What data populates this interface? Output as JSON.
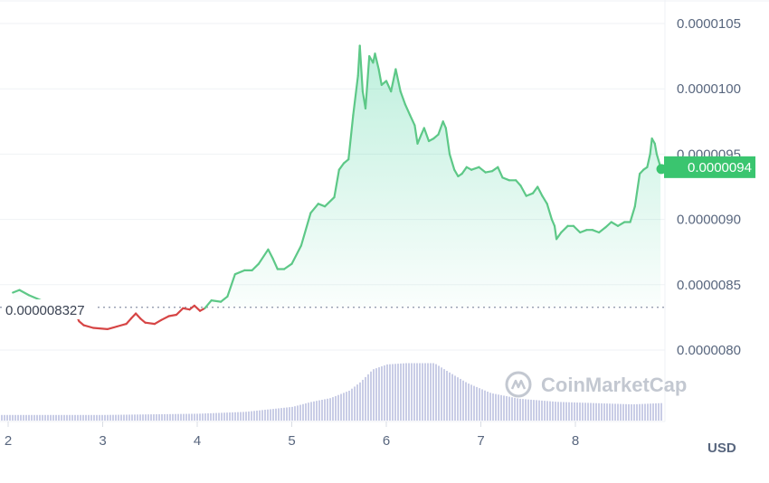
{
  "chart_data": {
    "type": "area",
    "currency_label": "USD",
    "watermark": "CoinMarketCap",
    "y_ticks": [
      "0.0000105",
      "0.0000100",
      "0.0000095",
      "0.0000090",
      "0.0000085",
      "0.0000080"
    ],
    "y_tick_values": [
      1.05e-05,
      1e-05,
      9.5e-06,
      9e-06,
      8.5e-06,
      8e-06
    ],
    "ylim": [
      7.78e-06,
      1.078e-05
    ],
    "x_ticks": [
      "2",
      "3",
      "4",
      "5",
      "6",
      "7",
      "8"
    ],
    "x_tick_values": [
      2,
      3,
      4,
      5,
      6,
      7,
      8
    ],
    "xlim": [
      1.92,
      8.92
    ],
    "open_price": 8.327e-06,
    "open_price_label": "0.000008327",
    "current_price": 9.4e-06,
    "current_price_label": "0.0000094",
    "colors": {
      "up": "#16c784",
      "up_line": "#5dc887",
      "down": "#d64545",
      "volume": "#c9cde6",
      "current_bg": "#3ac56f"
    },
    "price_series": [
      [
        2.05,
        8.44e-06
      ],
      [
        2.12,
        8.46e-06
      ],
      [
        2.22,
        8.42e-06
      ],
      [
        2.35,
        8.38e-06
      ],
      [
        2.55,
        8.34e-06
      ],
      [
        2.7,
        8.3e-06
      ],
      [
        2.75,
        8.22e-06
      ],
      [
        2.8,
        8.19e-06
      ],
      [
        2.9,
        8.17e-06
      ],
      [
        3.05,
        8.16e-06
      ],
      [
        3.15,
        8.18e-06
      ],
      [
        3.25,
        8.2e-06
      ],
      [
        3.3,
        8.24e-06
      ],
      [
        3.35,
        8.28e-06
      ],
      [
        3.4,
        8.24e-06
      ],
      [
        3.45,
        8.21e-06
      ],
      [
        3.55,
        8.2e-06
      ],
      [
        3.62,
        8.23e-06
      ],
      [
        3.7,
        8.26e-06
      ],
      [
        3.78,
        8.27e-06
      ],
      [
        3.85,
        8.32e-06
      ],
      [
        3.92,
        8.31e-06
      ],
      [
        3.97,
        8.34e-06
      ],
      [
        4.03,
        8.3e-06
      ],
      [
        4.08,
        8.32e-06
      ],
      [
        4.15,
        8.38e-06
      ],
      [
        4.25,
        8.37e-06
      ],
      [
        4.32,
        8.41e-06
      ],
      [
        4.4,
        8.58e-06
      ],
      [
        4.5,
        8.61e-06
      ],
      [
        4.58,
        8.61e-06
      ],
      [
        4.65,
        8.66e-06
      ],
      [
        4.75,
        8.77e-06
      ],
      [
        4.8,
        8.7e-06
      ],
      [
        4.85,
        8.62e-06
      ],
      [
        4.92,
        8.62e-06
      ],
      [
        5.0,
        8.66e-06
      ],
      [
        5.1,
        8.8e-06
      ],
      [
        5.2,
        9.05e-06
      ],
      [
        5.28,
        9.12e-06
      ],
      [
        5.35,
        9.1e-06
      ],
      [
        5.45,
        9.17e-06
      ],
      [
        5.5,
        9.38e-06
      ],
      [
        5.55,
        9.43e-06
      ],
      [
        5.6,
        9.46e-06
      ],
      [
        5.65,
        9.8e-06
      ],
      [
        5.7,
        1.01e-05
      ],
      [
        5.72,
        1.033e-05
      ],
      [
        5.75,
        9.98e-06
      ],
      [
        5.78,
        9.85e-06
      ],
      [
        5.82,
        1.025e-05
      ],
      [
        5.86,
        1.02e-05
      ],
      [
        5.88,
        1.027e-05
      ],
      [
        5.92,
        1.015e-05
      ],
      [
        5.95,
        1.003e-05
      ],
      [
        6.0,
        1.006e-05
      ],
      [
        6.05,
        9.98e-06
      ],
      [
        6.1,
        1.015e-05
      ],
      [
        6.15,
        9.98e-06
      ],
      [
        6.2,
        9.88e-06
      ],
      [
        6.25,
        9.8e-06
      ],
      [
        6.3,
        9.72e-06
      ],
      [
        6.33,
        9.58e-06
      ],
      [
        6.37,
        9.65e-06
      ],
      [
        6.4,
        9.7e-06
      ],
      [
        6.45,
        9.6e-06
      ],
      [
        6.5,
        9.62e-06
      ],
      [
        6.55,
        9.65e-06
      ],
      [
        6.6,
        9.75e-06
      ],
      [
        6.63,
        9.7e-06
      ],
      [
        6.67,
        9.5e-06
      ],
      [
        6.72,
        9.38e-06
      ],
      [
        6.76,
        9.33e-06
      ],
      [
        6.8,
        9.35e-06
      ],
      [
        6.85,
        9.4e-06
      ],
      [
        6.9,
        9.38e-06
      ],
      [
        6.98,
        9.4e-06
      ],
      [
        7.05,
        9.36e-06
      ],
      [
        7.12,
        9.37e-06
      ],
      [
        7.18,
        9.4e-06
      ],
      [
        7.23,
        9.32e-06
      ],
      [
        7.3,
        9.3e-06
      ],
      [
        7.37,
        9.3e-06
      ],
      [
        7.42,
        9.26e-06
      ],
      [
        7.48,
        9.18e-06
      ],
      [
        7.55,
        9.2e-06
      ],
      [
        7.6,
        9.25e-06
      ],
      [
        7.65,
        9.18e-06
      ],
      [
        7.7,
        9.12e-06
      ],
      [
        7.75,
        9e-06
      ],
      [
        7.78,
        8.95e-06
      ],
      [
        7.8,
        8.85e-06
      ],
      [
        7.85,
        8.9e-06
      ],
      [
        7.92,
        8.95e-06
      ],
      [
        7.98,
        8.95e-06
      ],
      [
        8.05,
        8.9e-06
      ],
      [
        8.12,
        8.92e-06
      ],
      [
        8.18,
        8.92e-06
      ],
      [
        8.25,
        8.9e-06
      ],
      [
        8.32,
        8.94e-06
      ],
      [
        8.38,
        8.98e-06
      ],
      [
        8.45,
        8.95e-06
      ],
      [
        8.52,
        8.98e-06
      ],
      [
        8.58,
        8.98e-06
      ],
      [
        8.63,
        9.1e-06
      ],
      [
        8.68,
        9.35e-06
      ],
      [
        8.72,
        9.38e-06
      ],
      [
        8.76,
        9.4e-06
      ],
      [
        8.79,
        9.5e-06
      ],
      [
        8.81,
        9.62e-06
      ],
      [
        8.84,
        9.58e-06
      ],
      [
        8.86,
        9.5e-06
      ],
      [
        8.88,
        9.45e-06
      ],
      [
        8.9,
        9.4e-06
      ]
    ],
    "volume_series": [
      [
        2.0,
        0.09
      ],
      [
        2.5,
        0.09
      ],
      [
        3.0,
        0.09
      ],
      [
        3.5,
        0.1
      ],
      [
        4.0,
        0.11
      ],
      [
        4.5,
        0.14
      ],
      [
        5.0,
        0.22
      ],
      [
        5.2,
        0.3
      ],
      [
        5.4,
        0.36
      ],
      [
        5.6,
        0.48
      ],
      [
        5.72,
        0.62
      ],
      [
        5.85,
        0.82
      ],
      [
        6.0,
        0.9
      ],
      [
        6.2,
        0.92
      ],
      [
        6.5,
        0.92
      ],
      [
        6.65,
        0.78
      ],
      [
        6.85,
        0.6
      ],
      [
        7.1,
        0.44
      ],
      [
        7.4,
        0.35
      ],
      [
        7.8,
        0.3
      ],
      [
        8.2,
        0.28
      ],
      [
        8.6,
        0.26
      ],
      [
        8.9,
        0.28
      ]
    ]
  }
}
